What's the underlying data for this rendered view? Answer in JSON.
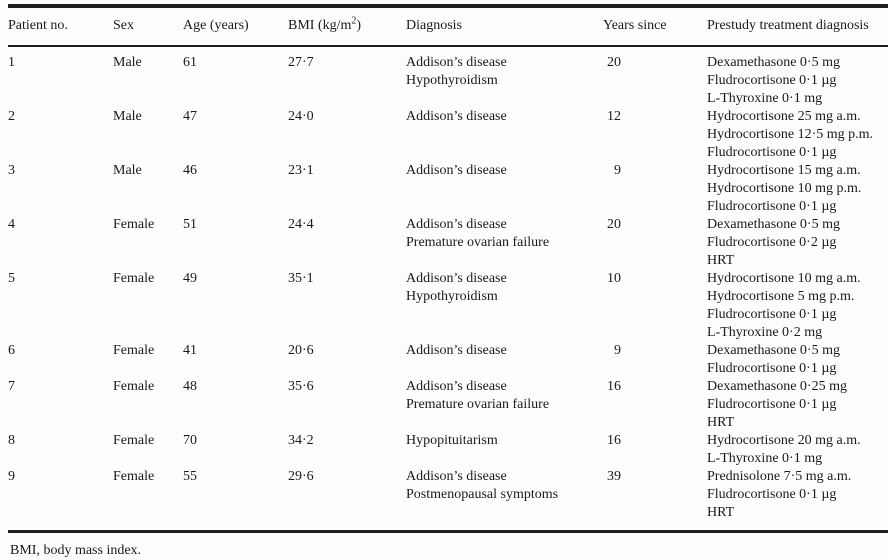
{
  "table": {
    "headers": {
      "patient_no": "Patient no.",
      "sex": "Sex",
      "age": "Age (years)",
      "bmi_pre": "BMI (kg/m",
      "bmi_sup": "2",
      "bmi_post": ")",
      "diagnosis": "Diagnosis",
      "years_since": "Years since",
      "treatment": "Prestudy treatment diagnosis"
    },
    "rows": [
      {
        "no": "1",
        "sex": "Male",
        "age": "61",
        "bmi": "27·7",
        "diagnosis": [
          "Addison’s disease",
          "Hypothyroidism"
        ],
        "years": "20",
        "treatment": [
          "Dexamethasone 0·5 mg",
          "Fludrocortisone 0·1 µg",
          "L-Thyroxine 0·1 mg"
        ]
      },
      {
        "no": "2",
        "sex": "Male",
        "age": "47",
        "bmi": "24·0",
        "diagnosis": [
          "Addison’s disease"
        ],
        "years": "12",
        "treatment": [
          "Hydrocortisone 25 mg a.m.",
          "Hydrocortisone 12·5 mg p.m.",
          "Fludrocortisone 0·1 µg"
        ]
      },
      {
        "no": "3",
        "sex": "Male",
        "age": "46",
        "bmi": "23·1",
        "diagnosis": [
          "Addison’s disease"
        ],
        "years": "9",
        "treatment": [
          "Hydrocortisone 15 mg a.m.",
          "Hydrocortisone 10 mg p.m.",
          "Fludrocortisone 0·1 µg"
        ]
      },
      {
        "no": "4",
        "sex": "Female",
        "age": "51",
        "bmi": "24·4",
        "diagnosis": [
          "Addison’s disease",
          "Premature ovarian failure"
        ],
        "years": "20",
        "treatment": [
          "Dexamethasone 0·5 mg",
          "Fludrocortisone 0·2 µg",
          "HRT"
        ]
      },
      {
        "no": "5",
        "sex": "Female",
        "age": "49",
        "bmi": "35·1",
        "diagnosis": [
          "Addison’s disease",
          "Hypothyroidism"
        ],
        "years": "10",
        "treatment": [
          "Hydrocortisone 10 mg a.m.",
          "Hydrocortisone 5 mg p.m.",
          "Fludrocortisone 0·1 µg",
          "L-Thyroxine 0·2 mg"
        ]
      },
      {
        "no": "6",
        "sex": "Female",
        "age": "41",
        "bmi": "20·6",
        "diagnosis": [
          "Addison’s disease"
        ],
        "years": "9",
        "treatment": [
          "Dexamethasone 0·5 mg",
          "Fludrocortisone 0·1 µg"
        ]
      },
      {
        "no": "7",
        "sex": "Female",
        "age": "48",
        "bmi": "35·6",
        "diagnosis": [
          "Addison’s disease",
          "Premature ovarian failure"
        ],
        "years": "16",
        "treatment": [
          "Dexamethasone 0·25 mg",
          "Fludrocortisone 0·1 µg",
          "HRT"
        ]
      },
      {
        "no": "8",
        "sex": "Female",
        "age": "70",
        "bmi": "34·2",
        "diagnosis": [
          "Hypopituitarism"
        ],
        "years": "16",
        "treatment": [
          "Hydrocortisone 20 mg a.m.",
          "L-Thyroxine 0·1 mg"
        ]
      },
      {
        "no": "9",
        "sex": "Female",
        "age": "55",
        "bmi": "29·6",
        "diagnosis": [
          "Addison’s disease",
          "Postmenopausal symptoms"
        ],
        "years": "39",
        "treatment": [
          "Prednisolone 7·5 mg a.m.",
          "Fludrocortisone 0·1 µg",
          "HRT"
        ]
      }
    ]
  },
  "footnote": "BMI, body mass index.",
  "colors": {
    "text": "#1a1a1a",
    "rule": "#1f1f1f",
    "background": "#fdfdfd"
  }
}
